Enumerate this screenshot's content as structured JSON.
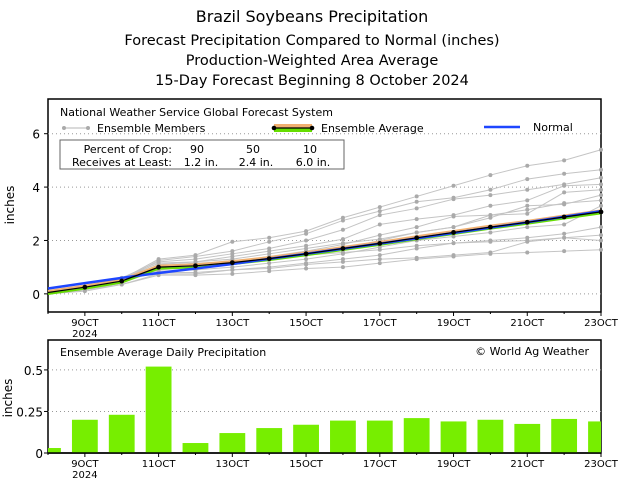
{
  "titles": {
    "line1": "Brazil Soybeans Precipitation",
    "line2": "Forecast Precipitation Compared to Normal (inches)",
    "line3": "Production-Weighted Area Average",
    "line4": "15-Day Forecast Beginning 8 October 2024"
  },
  "chart_data": [
    {
      "type": "line",
      "source_label": "National Weather Service Global Forecast System",
      "ylabel": "inches",
      "ylim": [
        -0.68,
        7.3
      ],
      "yticks": [
        "0",
        "2",
        "4",
        "6"
      ],
      "ytick_values": [
        0,
        2,
        4,
        6
      ],
      "grid": "dotted horizontal",
      "x": [
        8,
        9,
        10,
        11,
        12,
        13,
        14,
        15,
        16,
        17,
        18,
        19,
        20,
        21,
        22,
        23
      ],
      "xtick_labels": [
        "9OCT",
        "11OCT",
        "13OCT",
        "15OCT",
        "17OCT",
        "19OCT",
        "21OCT",
        "23OCT"
      ],
      "xtick_days": [
        9,
        11,
        13,
        15,
        17,
        19,
        21,
        23
      ],
      "year_label": "2024",
      "legend": {
        "members": "Ensemble Members",
        "average": "Ensemble Average",
        "normal": "Normal"
      },
      "crop_table": {
        "row1_label": "Percent of Crop:",
        "row1": [
          "90",
          "50",
          "10"
        ],
        "row2_label": "Receives at Least:",
        "row2": [
          "1.2 in.",
          "2.4 in.",
          "6.0 in."
        ]
      },
      "colors": {
        "members": "#b4b4b4",
        "average": "#000000",
        "normal": "#1e46ff",
        "avg_band_upper": "#f0b070",
        "avg_band_lower": "#66dd00"
      },
      "series": [
        {
          "name": "Ensemble Average",
          "values": [
            0.05,
            0.25,
            0.48,
            1.0,
            1.05,
            1.17,
            1.32,
            1.5,
            1.7,
            1.89,
            2.1,
            2.3,
            2.5,
            2.68,
            2.88,
            3.07
          ]
        },
        {
          "name": "Normal",
          "values": [
            0.2,
            0.4,
            0.6,
            0.78,
            0.95,
            1.12,
            1.31,
            1.5,
            1.69,
            1.88,
            2.08,
            2.28,
            2.48,
            2.68,
            2.89,
            3.1
          ]
        }
      ],
      "members": [
        [
          0,
          0.2,
          0.55,
          1.3,
          1.45,
          1.95,
          2.1,
          2.35,
          2.85,
          3.25,
          3.65,
          4.05,
          4.45,
          4.8,
          5.0,
          5.4
        ],
        [
          0,
          0.2,
          0.5,
          1.25,
          1.4,
          1.6,
          1.95,
          2.25,
          2.75,
          3.1,
          3.45,
          3.6,
          3.9,
          4.3,
          4.5,
          4.65
        ],
        [
          0.05,
          0.25,
          0.6,
          1.2,
          1.3,
          1.5,
          1.7,
          2.0,
          2.4,
          2.95,
          3.2,
          3.55,
          3.7,
          3.9,
          4.1,
          4.35
        ],
        [
          0.05,
          0.2,
          0.45,
          1.1,
          1.2,
          1.4,
          1.6,
          1.8,
          2.05,
          2.6,
          2.8,
          2.95,
          3.3,
          3.5,
          4.05,
          4.1
        ],
        [
          0,
          0.15,
          0.4,
          0.9,
          1.0,
          1.2,
          1.4,
          1.6,
          1.85,
          2.2,
          2.5,
          2.9,
          2.95,
          3.0,
          3.8,
          3.9
        ],
        [
          0.05,
          0.25,
          0.5,
          1.0,
          1.1,
          1.25,
          1.35,
          1.55,
          1.7,
          2.0,
          2.3,
          2.5,
          2.85,
          3.3,
          3.35,
          3.7
        ],
        [
          0,
          0.2,
          0.45,
          0.85,
          0.9,
          1.0,
          1.15,
          1.3,
          1.5,
          1.75,
          2.0,
          2.15,
          2.3,
          2.5,
          2.6,
          3.3
        ],
        [
          0,
          0.15,
          0.35,
          0.75,
          0.75,
          0.9,
          1.0,
          1.15,
          1.3,
          1.45,
          1.7,
          1.9,
          2.0,
          2.1,
          2.25,
          2.5
        ],
        [
          0,
          0.1,
          0.35,
          0.7,
          0.7,
          0.75,
          0.85,
          0.95,
          1.0,
          1.15,
          1.3,
          1.4,
          1.5,
          1.55,
          1.6,
          1.65
        ],
        [
          0.05,
          0.2,
          0.5,
          0.8,
          0.8,
          0.9,
          0.95,
          1.1,
          1.2,
          1.3,
          1.35,
          1.45,
          1.55,
          1.95,
          2.1,
          2.2
        ],
        [
          0,
          0.25,
          0.55,
          1.15,
          1.2,
          1.3,
          1.5,
          1.7,
          1.9,
          2.05,
          2.3,
          2.5,
          2.95,
          3.15,
          3.4,
          3.5
        ],
        [
          0,
          0.2,
          0.5,
          1.05,
          1.15,
          1.2,
          1.3,
          1.45,
          1.55,
          1.65,
          1.8,
          1.9,
          1.95,
          2.0,
          2.1,
          2.0
        ]
      ]
    },
    {
      "type": "bar",
      "title": "Ensemble Average Daily Precipitation",
      "credit": "© World Ag Weather",
      "ylabel": "inches",
      "ylim": [
        0,
        0.68
      ],
      "yticks": [
        "0",
        "0.25",
        "0.5"
      ],
      "ytick_values": [
        0,
        0.25,
        0.5
      ],
      "x": [
        8,
        9,
        10,
        11,
        12,
        13,
        14,
        15,
        16,
        17,
        18,
        19,
        20,
        21,
        22,
        23
      ],
      "values": [
        0.03,
        0.2,
        0.23,
        0.52,
        0.06,
        0.12,
        0.15,
        0.17,
        0.195,
        0.195,
        0.21,
        0.19,
        0.2,
        0.175,
        0.205,
        0.19
      ],
      "xtick_labels": [
        "9OCT",
        "11OCT",
        "13OCT",
        "15OCT",
        "17OCT",
        "19OCT",
        "21OCT",
        "23OCT"
      ],
      "xtick_days": [
        9,
        11,
        13,
        15,
        17,
        19,
        21,
        23
      ],
      "year_label": "2024",
      "colors": {
        "bar": "#77ee00"
      }
    }
  ]
}
